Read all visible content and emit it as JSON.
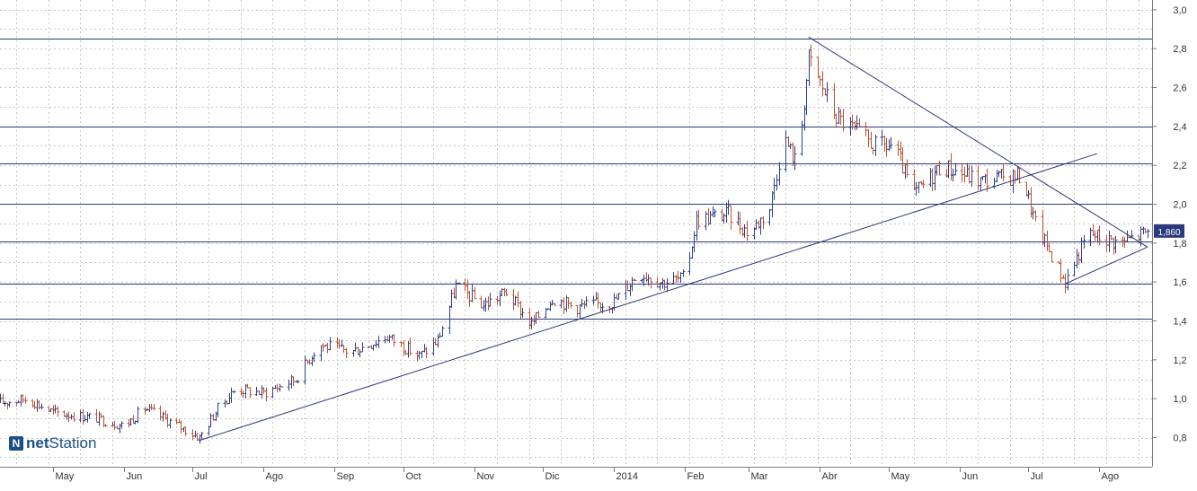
{
  "chart_data": {
    "type": "ohlc",
    "ylim": [
      0.65,
      3.05
    ],
    "y_ticks": [
      0.8,
      1.0,
      1.2,
      1.4,
      1.6,
      1.8,
      2.0,
      2.2,
      2.4,
      2.6,
      2.8,
      3.0
    ],
    "y_tick_labels": [
      "0,8",
      "1,0",
      "1,2",
      "1,4",
      "1,6",
      "1,8",
      "2,0",
      "2,2",
      "2,4",
      "2,6",
      "2,8",
      "3,0"
    ],
    "x_ticks": [
      {
        "label": "May",
        "date": "2013-05-01"
      },
      {
        "label": "Jun",
        "date": "2013-06-01"
      },
      {
        "label": "Jul",
        "date": "2013-07-01"
      },
      {
        "label": "Ago",
        "date": "2013-08-01"
      },
      {
        "label": "Sep",
        "date": "2013-09-01"
      },
      {
        "label": "Oct",
        "date": "2013-10-01"
      },
      {
        "label": "Nov",
        "date": "2013-11-01"
      },
      {
        "label": "Dic",
        "date": "2013-12-01"
      },
      {
        "label": "2014",
        "date": "2014-01-01"
      },
      {
        "label": "Feb",
        "date": "2014-02-01"
      },
      {
        "label": "Mar",
        "date": "2014-03-01"
      },
      {
        "label": "Abr",
        "date": "2014-04-01"
      },
      {
        "label": "May",
        "date": "2014-05-01"
      },
      {
        "label": "Jun",
        "date": "2014-06-01"
      },
      {
        "label": "Jul",
        "date": "2014-07-01"
      },
      {
        "label": "Ago",
        "date": "2014-08-01"
      }
    ],
    "x_range": [
      "2013-04-08",
      "2014-08-24"
    ],
    "last_value_label": "1,860",
    "last_value": 1.86,
    "grid": true,
    "up_color": "#2a3f8e",
    "down_color": "#c0502c",
    "horizontal_levels": [
      2.85,
      2.4,
      2.21,
      2.0,
      1.81,
      1.59,
      1.41
    ],
    "trendlines": [
      {
        "from": {
          "date": "2013-07-04",
          "value": 0.785
        },
        "to": {
          "date": "2014-07-31",
          "value": 2.26
        }
      },
      {
        "from": {
          "date": "2014-03-27",
          "value": 2.86
        },
        "to": {
          "date": "2014-08-22",
          "value": 1.78
        }
      },
      {
        "from": {
          "date": "2014-07-17",
          "value": 1.59
        },
        "to": {
          "date": "2014-08-22",
          "value": 1.78
        }
      }
    ],
    "series_anchors": [
      {
        "date": "2013-04-08",
        "value": 0.98
      },
      {
        "date": "2013-04-20",
        "value": 1.0
      },
      {
        "date": "2013-05-01",
        "value": 0.93
      },
      {
        "date": "2013-05-20",
        "value": 0.9
      },
      {
        "date": "2013-06-01",
        "value": 0.86
      },
      {
        "date": "2013-06-10",
        "value": 0.95
      },
      {
        "date": "2013-06-25",
        "value": 0.86
      },
      {
        "date": "2013-07-04",
        "value": 0.8
      },
      {
        "date": "2013-07-12",
        "value": 0.95
      },
      {
        "date": "2013-07-20",
        "value": 1.05
      },
      {
        "date": "2013-08-01",
        "value": 1.03
      },
      {
        "date": "2013-08-15",
        "value": 1.1
      },
      {
        "date": "2013-08-25",
        "value": 1.28
      },
      {
        "date": "2013-09-08",
        "value": 1.24
      },
      {
        "date": "2013-09-24",
        "value": 1.32
      },
      {
        "date": "2013-10-08",
        "value": 1.22
      },
      {
        "date": "2013-10-16",
        "value": 1.3
      },
      {
        "date": "2013-10-24",
        "value": 1.58
      },
      {
        "date": "2013-11-05",
        "value": 1.48
      },
      {
        "date": "2013-11-15",
        "value": 1.55
      },
      {
        "date": "2013-11-26",
        "value": 1.38
      },
      {
        "date": "2013-12-05",
        "value": 1.52
      },
      {
        "date": "2013-12-15",
        "value": 1.47
      },
      {
        "date": "2014-01-01",
        "value": 1.5
      },
      {
        "date": "2014-01-12",
        "value": 1.65
      },
      {
        "date": "2014-01-22",
        "value": 1.6
      },
      {
        "date": "2014-02-01",
        "value": 1.62
      },
      {
        "date": "2014-02-06",
        "value": 1.92
      },
      {
        "date": "2014-02-20",
        "value": 1.95
      },
      {
        "date": "2014-03-01",
        "value": 1.85
      },
      {
        "date": "2014-03-10",
        "value": 1.98
      },
      {
        "date": "2014-03-16",
        "value": 2.35
      },
      {
        "date": "2014-03-22",
        "value": 2.2
      },
      {
        "date": "2014-03-27",
        "value": 2.75
      },
      {
        "date": "2014-04-08",
        "value": 2.45
      },
      {
        "date": "2014-04-25",
        "value": 2.3
      },
      {
        "date": "2014-05-03",
        "value": 2.3
      },
      {
        "date": "2014-05-12",
        "value": 2.05
      },
      {
        "date": "2014-05-24",
        "value": 2.2
      },
      {
        "date": "2014-06-10",
        "value": 2.12
      },
      {
        "date": "2014-06-28",
        "value": 2.15
      },
      {
        "date": "2014-07-04",
        "value": 1.9
      },
      {
        "date": "2014-07-17",
        "value": 1.6
      },
      {
        "date": "2014-07-27",
        "value": 1.85
      },
      {
        "date": "2014-08-10",
        "value": 1.8
      },
      {
        "date": "2014-08-22",
        "value": 1.86
      }
    ]
  },
  "brand": {
    "icon_name": "netstation-logo-icon",
    "mark": "N",
    "part1": "net",
    "part2": "Station"
  }
}
